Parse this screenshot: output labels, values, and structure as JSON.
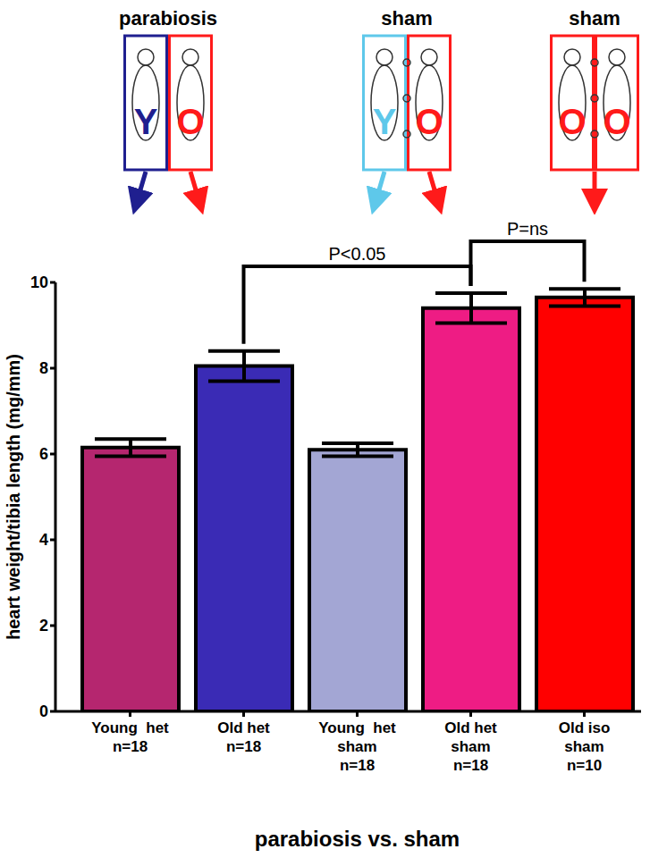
{
  "diagram": [
    {
      "label": "parabiosis",
      "letters": [
        "Y",
        "O"
      ],
      "colors": [
        "#1f1f8f",
        "#ff1a1a"
      ]
    },
    {
      "label": "sham",
      "letters": [
        "Y",
        "O"
      ],
      "colors": [
        "#5ec8ea",
        "#ff1a1a"
      ]
    },
    {
      "label": "sham",
      "letters": [
        "O",
        "O"
      ],
      "colors": [
        "#ff1a1a",
        "#ff1a1a"
      ]
    }
  ],
  "chart_data": {
    "type": "bar",
    "x_label": "parabiosis vs. sham",
    "y_label": "heart weight/tibia length (mg/mm)",
    "categories": [
      "Young  het\nn=18",
      "Old het\nn=18",
      "Young  het\nsham\nn=18",
      "Old het\nsham\nn=18",
      "Old iso\nsham\nn=10"
    ],
    "values": [
      6.15,
      8.05,
      6.1,
      9.4,
      9.65
    ],
    "errors": [
      0.2,
      0.35,
      0.15,
      0.35,
      0.2
    ],
    "colors": [
      "#b5266f",
      "#3a2bb5",
      "#a3a6d4",
      "#ee1c84",
      "#ff0000"
    ],
    "ylim": [
      0,
      10
    ],
    "yticks": [
      0,
      2,
      4,
      6,
      8,
      10
    ],
    "grid": false,
    "annotations": [
      {
        "text": "P<0.05",
        "between": [
          "Old het\nn=18",
          "Old het sham\nn=18"
        ]
      },
      {
        "text": "P=ns",
        "between": [
          "Old het\nsham\nn=18",
          "Old iso\nsham\nn=10"
        ]
      }
    ]
  }
}
